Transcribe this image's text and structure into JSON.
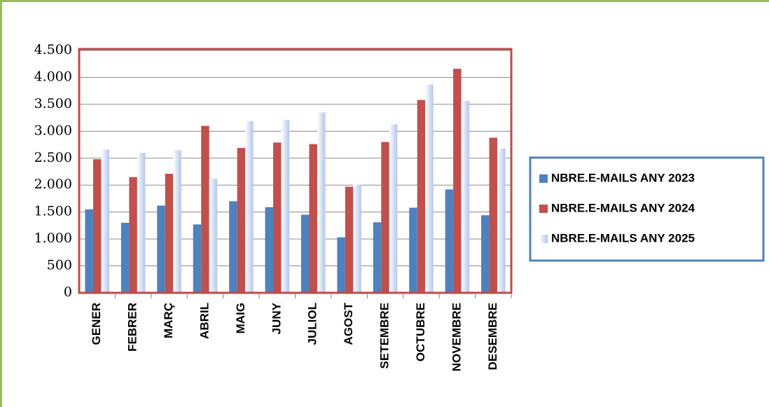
{
  "chart_data": {
    "type": "bar",
    "categories": [
      "GENER",
      "FEBRER",
      "MARÇ",
      "ABRIL",
      "MAIG",
      "JUNY",
      "JULIOL",
      "AGOST",
      "SETEMBRE",
      "OCTUBRE",
      "NOVEMBRE",
      "DESEMBRE"
    ],
    "series": [
      {
        "name": "NBRE.E-MAILS ANY 2023",
        "color": "#4f81bd",
        "values": [
          1550,
          1300,
          1620,
          1270,
          1700,
          1590,
          1450,
          1030,
          1310,
          1580,
          1920,
          1440
        ]
      },
      {
        "name": "NBRE.E-MAILS ANY 2024",
        "color": "#c0504d",
        "values": [
          2480,
          2150,
          2210,
          3100,
          2690,
          2790,
          2760,
          1970,
          2800,
          3580,
          4160,
          2880
        ]
      },
      {
        "name": "NBRE.E-MAILS ANY 2025",
        "color": "#c6d4f0",
        "values": [
          2660,
          2600,
          2650,
          2120,
          3190,
          3210,
          3350,
          2010,
          3130,
          3870,
          3560,
          2680
        ]
      }
    ],
    "ylim": [
      0,
      4500
    ],
    "yticks": [
      0,
      500,
      {
        "value": 1000,
        "label": "1.000"
      },
      {
        "value": 1500,
        "label": "1.500"
      },
      {
        "value": 2000,
        "label": "2.000"
      },
      {
        "value": 2500,
        "label": "2.500"
      },
      {
        "value": 3000,
        "label": "3.000"
      },
      {
        "value": 3500,
        "label": "3.500"
      },
      {
        "value": 4000,
        "label": "4.000"
      },
      {
        "value": 4500,
        "label": "4.500"
      }
    ],
    "grid": true,
    "legend": "right"
  }
}
